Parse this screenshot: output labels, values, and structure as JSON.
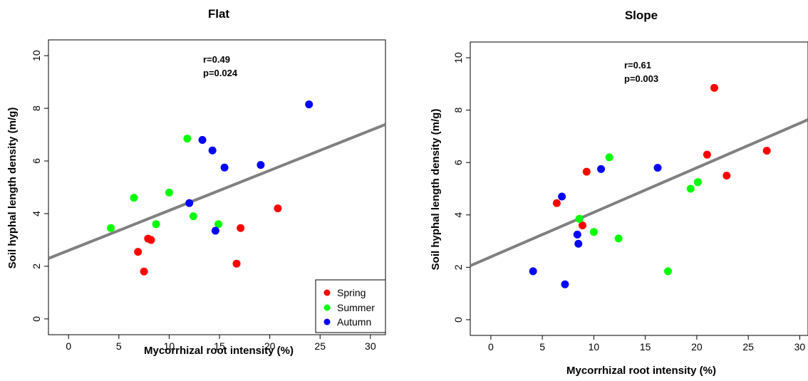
{
  "chart_data": [
    {
      "type": "scatter",
      "title": "Flat",
      "xlabel": "Mycorrhizal root intensity (%)",
      "ylabel": "Soil hyphal length density (m/g)",
      "xlim": [
        -2,
        31.5
      ],
      "ylim": [
        -0.6,
        10.6
      ],
      "xticks": [
        "0",
        "5",
        "10",
        "15",
        "20",
        "25",
        "30"
      ],
      "yticks": [
        "0",
        "2",
        "4",
        "6",
        "8",
        "10"
      ],
      "annotation": [
        "r=0.49",
        "p=0.024"
      ],
      "legend_position": "bottom-right",
      "legend": [
        "Spring",
        "Summer",
        "Autumn"
      ],
      "trendline": {
        "intercept": 2.6,
        "slope": 0.152
      },
      "series": [
        {
          "name": "Spring",
          "color": "#ff0000",
          "points": [
            [
              6.9,
              2.55
            ],
            [
              7.5,
              1.8
            ],
            [
              7.9,
              3.05
            ],
            [
              8.2,
              3.0
            ],
            [
              16.7,
              2.1
            ],
            [
              17.1,
              3.45
            ],
            [
              20.8,
              4.2
            ]
          ]
        },
        {
          "name": "Summer",
          "color": "#00ff00",
          "points": [
            [
              4.2,
              3.45
            ],
            [
              6.5,
              4.6
            ],
            [
              8.7,
              3.6
            ],
            [
              10.0,
              4.8
            ],
            [
              11.8,
              6.85
            ],
            [
              12.4,
              3.9
            ],
            [
              14.9,
              3.6
            ]
          ]
        },
        {
          "name": "Autumn",
          "color": "#0000ff",
          "points": [
            [
              12.0,
              4.4
            ],
            [
              13.3,
              6.8
            ],
            [
              14.3,
              6.4
            ],
            [
              14.6,
              3.35
            ],
            [
              15.5,
              5.75
            ],
            [
              19.1,
              5.85
            ],
            [
              23.9,
              8.15
            ]
          ]
        }
      ]
    },
    {
      "type": "scatter",
      "title": "Slope",
      "xlabel": "Mycorrhizal root intensity (%)",
      "ylabel": "Soil hyphal length density (m/g)",
      "xlim": [
        -2,
        30.8
      ],
      "ylim": [
        -0.6,
        10.6
      ],
      "xticks": [
        "0",
        "5",
        "10",
        "15",
        "20",
        "25",
        "30"
      ],
      "yticks": [
        "0",
        "2",
        "4",
        "6",
        "8",
        "10"
      ],
      "annotation": [
        "r=0.61",
        "p=0.003"
      ],
      "trendline": {
        "intercept": 2.4,
        "slope": 0.17
      },
      "series": [
        {
          "name": "Spring",
          "color": "#ff0000",
          "points": [
            [
              6.4,
              4.45
            ],
            [
              8.9,
              3.6
            ],
            [
              9.3,
              5.65
            ],
            [
              21.0,
              6.3
            ],
            [
              21.7,
              8.85
            ],
            [
              22.9,
              5.5
            ],
            [
              26.8,
              6.45
            ]
          ]
        },
        {
          "name": "Summer",
          "color": "#00ff00",
          "points": [
            [
              8.6,
              3.85
            ],
            [
              10.0,
              3.35
            ],
            [
              11.5,
              6.2
            ],
            [
              12.4,
              3.1
            ],
            [
              17.2,
              1.85
            ],
            [
              19.4,
              5.0
            ],
            [
              20.1,
              5.25
            ]
          ]
        },
        {
          "name": "Autumn",
          "color": "#0000ff",
          "points": [
            [
              4.1,
              1.85
            ],
            [
              6.9,
              4.7
            ],
            [
              7.2,
              1.35
            ],
            [
              8.4,
              3.25
            ],
            [
              8.5,
              2.9
            ],
            [
              10.7,
              5.75
            ],
            [
              16.2,
              5.8
            ]
          ]
        }
      ]
    }
  ]
}
